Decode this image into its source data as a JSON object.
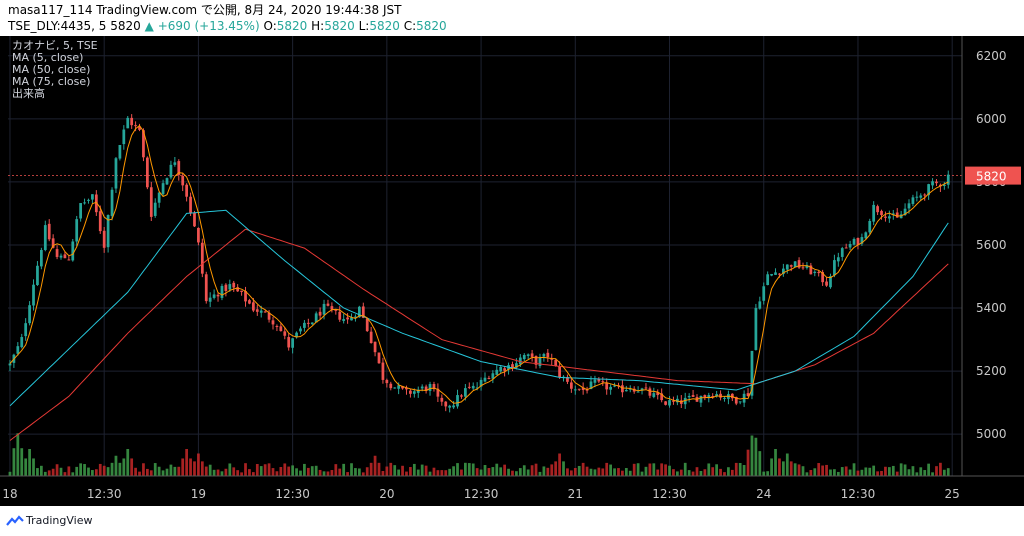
{
  "header": {
    "line1": "masa117_114 TradingView.com で公開, 8月 24, 2020 19:44:38 JST",
    "line2_symbol": "TSE_DLY:4435, 5 5820",
    "line2_arrow": "▲",
    "line2_change": "+690 (+13.45%)",
    "line2_ohlc_o_label": "O:",
    "line2_ohlc_o": "5820",
    "line2_ohlc_h_label": "H:",
    "line2_ohlc_h": "5820",
    "line2_ohlc_l_label": "L:",
    "line2_ohlc_l": "5820",
    "line2_ohlc_c_label": "C:",
    "line2_ohlc_c": "5820"
  },
  "legend": [
    "カオナビ, 5, TSE",
    "MA (5, close)",
    "MA (50, close)",
    "MA (75, close)",
    "出来高"
  ],
  "footer": {
    "brand": "TradingView",
    "logo_icon": "tradingview-logo-icon"
  },
  "colors": {
    "up": "#26a69a",
    "down": "#ef5350",
    "ma5": "#ff9800",
    "ma50": "#26c6da",
    "ma75": "#e53935",
    "grid": "#1e2230",
    "axis_text": "#c8c8c8",
    "price_tag": "#ef5350",
    "vol_up": "#3e9e4a",
    "vol_down": "#c62828"
  },
  "chart_data": {
    "type": "candlestick",
    "y_ticks": [
      6200,
      6000,
      5800,
      5600,
      5400,
      5200,
      5000
    ],
    "ylim": [
      4880,
      6250
    ],
    "x_ticks": [
      "18",
      "12:30",
      "19",
      "12:30",
      "20",
      "12:30",
      "21",
      "12:30",
      "24",
      "12:30",
      "25"
    ],
    "last_price": "5820",
    "last_price_value": 5820,
    "session_anchors": [
      [
        0,
        5220
      ],
      [
        3,
        5300
      ],
      [
        6,
        5480
      ],
      [
        9,
        5650
      ],
      [
        12,
        5560
      ],
      [
        15,
        5560
      ],
      [
        18,
        5730
      ],
      [
        21,
        5750
      ],
      [
        24,
        5600
      ],
      [
        27,
        5880
      ],
      [
        30,
        6000
      ],
      [
        33,
        5960
      ],
      [
        36,
        5700
      ],
      [
        39,
        5800
      ],
      [
        42,
        5870
      ],
      [
        45,
        5760
      ],
      [
        48,
        5600
      ],
      [
        50,
        5420
      ],
      [
        53,
        5450
      ],
      [
        56,
        5470
      ],
      [
        59,
        5440
      ],
      [
        62,
        5400
      ],
      [
        65,
        5380
      ],
      [
        68,
        5350
      ],
      [
        71,
        5280
      ],
      [
        74,
        5330
      ],
      [
        77,
        5360
      ],
      [
        80,
        5400
      ],
      [
        83,
        5380
      ],
      [
        86,
        5360
      ],
      [
        89,
        5400
      ],
      [
        92,
        5300
      ],
      [
        95,
        5180
      ],
      [
        98,
        5150
      ],
      [
        101,
        5130
      ],
      [
        104,
        5140
      ],
      [
        107,
        5150
      ],
      [
        110,
        5090
      ],
      [
        113,
        5100
      ],
      [
        116,
        5140
      ],
      [
        119,
        5150
      ],
      [
        122,
        5190
      ],
      [
        125,
        5210
      ],
      [
        128,
        5220
      ],
      [
        131,
        5250
      ],
      [
        134,
        5230
      ],
      [
        137,
        5250
      ],
      [
        140,
        5190
      ],
      [
        143,
        5150
      ],
      [
        146,
        5140
      ],
      [
        149,
        5160
      ],
      [
        152,
        5150
      ],
      [
        155,
        5140
      ],
      [
        158,
        5150
      ],
      [
        161,
        5140
      ],
      [
        164,
        5120
      ],
      [
        167,
        5100
      ],
      [
        170,
        5100
      ],
      [
        173,
        5110
      ],
      [
        176,
        5120
      ],
      [
        179,
        5130
      ],
      [
        182,
        5120
      ],
      [
        185,
        5110
      ],
      [
        188,
        5130
      ],
      [
        190,
        5400
      ],
      [
        193,
        5500
      ],
      [
        196,
        5520
      ],
      [
        199,
        5540
      ],
      [
        202,
        5530
      ],
      [
        205,
        5510
      ],
      [
        208,
        5480
      ],
      [
        211,
        5570
      ],
      [
        214,
        5600
      ],
      [
        217,
        5620
      ],
      [
        220,
        5720
      ],
      [
        223,
        5700
      ],
      [
        226,
        5680
      ],
      [
        229,
        5730
      ],
      [
        232,
        5760
      ],
      [
        235,
        5790
      ],
      [
        238,
        5800
      ],
      [
        239,
        5820
      ]
    ],
    "ma50_anchors": [
      [
        0,
        5090
      ],
      [
        15,
        5270
      ],
      [
        30,
        5450
      ],
      [
        45,
        5700
      ],
      [
        55,
        5710
      ],
      [
        70,
        5550
      ],
      [
        85,
        5400
      ],
      [
        100,
        5320
      ],
      [
        120,
        5230
      ],
      [
        140,
        5180
      ],
      [
        160,
        5170
      ],
      [
        185,
        5140
      ],
      [
        200,
        5200
      ],
      [
        215,
        5310
      ],
      [
        230,
        5500
      ],
      [
        239,
        5670
      ]
    ],
    "ma75_anchors": [
      [
        0,
        4980
      ],
      [
        15,
        5120
      ],
      [
        30,
        5320
      ],
      [
        45,
        5500
      ],
      [
        60,
        5650
      ],
      [
        75,
        5590
      ],
      [
        90,
        5460
      ],
      [
        110,
        5300
      ],
      [
        130,
        5230
      ],
      [
        150,
        5200
      ],
      [
        170,
        5170
      ],
      [
        190,
        5160
      ],
      [
        205,
        5220
      ],
      [
        220,
        5320
      ],
      [
        239,
        5540
      ]
    ],
    "volume_spikes": [
      [
        2,
        0.95
      ],
      [
        5,
        0.6
      ],
      [
        27,
        0.45
      ],
      [
        30,
        0.6
      ],
      [
        45,
        0.6
      ],
      [
        48,
        0.5
      ],
      [
        93,
        0.45
      ],
      [
        140,
        0.5
      ],
      [
        189,
        0.9
      ],
      [
        190,
        0.85
      ],
      [
        195,
        0.6
      ],
      [
        198,
        0.5
      ]
    ]
  }
}
